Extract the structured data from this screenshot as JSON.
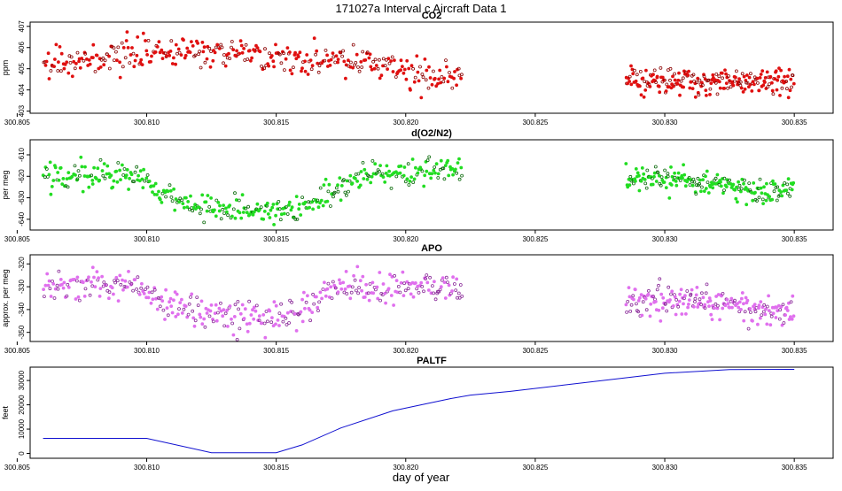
{
  "figure": {
    "title": "171027a   Interval c Aircraft Data 1",
    "xlabel": "day of year"
  },
  "chart_data": [
    {
      "type": "scatter",
      "id": "co2",
      "title": "CO2",
      "ylabel": "ppm",
      "color": "#e01010",
      "outline_color": "#8a0000",
      "xlim": [
        300.8055,
        300.8365
      ],
      "ylim": [
        402.9,
        407.2
      ],
      "xticks": [
        300.805,
        300.81,
        300.815,
        300.82,
        300.825,
        300.83,
        300.835
      ],
      "xtick_labels": [
        "300.805",
        "300.810",
        "300.815",
        "300.820",
        "300.825",
        "300.830",
        "300.835"
      ],
      "yticks": [
        403,
        404,
        405,
        406,
        407
      ],
      "ytick_labels": [
        "403",
        "404",
        "405",
        "406",
        "407"
      ],
      "segments": [
        {
          "x": [
            300.806,
            300.808,
            300.81,
            300.812,
            300.814,
            300.816,
            300.818,
            300.8195,
            300.8205,
            300.8222
          ],
          "y": [
            405.3,
            405.4,
            405.7,
            405.8,
            405.7,
            405.4,
            405.3,
            405.1,
            404.6,
            404.7
          ],
          "spread": 0.35,
          "n": 360
        },
        {
          "x": [
            300.8285,
            300.831,
            300.833,
            300.835
          ],
          "y": [
            404.4,
            404.4,
            404.4,
            404.4
          ],
          "spread": 0.3,
          "n": 220
        }
      ]
    },
    {
      "type": "scatter",
      "id": "o2n2",
      "title": "d(O2/N2)",
      "ylabel": "per meg",
      "color": "#22dd22",
      "outline_color": "#0a6a0a",
      "xlim": [
        300.8055,
        300.8365
      ],
      "ylim": [
        -645,
        -603
      ],
      "xticks": [
        300.805,
        300.81,
        300.815,
        300.82,
        300.825,
        300.83,
        300.835
      ],
      "xtick_labels": [
        "300.805",
        "300.810",
        "300.815",
        "300.820",
        "300.825",
        "300.830",
        "300.835"
      ],
      "yticks": [
        -640,
        -630,
        -620,
        -610
      ],
      "ytick_labels": [
        "-640",
        "-630",
        "-620",
        "-610"
      ],
      "segments": [
        {
          "x": [
            300.806,
            300.808,
            300.8095,
            300.8105,
            300.812,
            300.814,
            300.815,
            300.816,
            300.817,
            300.818,
            300.82,
            300.8222
          ],
          "y": [
            -619,
            -619,
            -619,
            -628,
            -634,
            -636,
            -637,
            -634,
            -628,
            -620,
            -617,
            -617
          ],
          "spread": 3.2,
          "n": 380
        },
        {
          "x": [
            300.8285,
            300.83,
            300.832,
            300.8335,
            300.835
          ],
          "y": [
            -622,
            -621,
            -623,
            -627,
            -625
          ],
          "spread": 2.8,
          "n": 200
        }
      ]
    },
    {
      "type": "scatter",
      "id": "apo",
      "title": "APO",
      "ylabel": "approx. per meg",
      "color": "#e070ee",
      "outline_color": "#8a2a99",
      "xlim": [
        300.8055,
        300.8365
      ],
      "ylim": [
        -354,
        -316
      ],
      "xticks": [
        300.805,
        300.81,
        300.815,
        300.82,
        300.825,
        300.83,
        300.835
      ],
      "xtick_labels": [
        "300.805",
        "300.810",
        "300.815",
        "300.820",
        "300.825",
        "300.830",
        "300.835"
      ],
      "yticks": [
        -350,
        -340,
        -330,
        -320
      ],
      "ytick_labels": [
        "-350",
        "-340",
        "-330",
        "-320"
      ],
      "segments": [
        {
          "x": [
            300.806,
            300.808,
            300.8095,
            300.8105,
            300.812,
            300.814,
            300.815,
            300.816,
            300.817,
            300.818,
            300.82,
            300.8222
          ],
          "y": [
            -329,
            -330,
            -329,
            -336,
            -341,
            -343,
            -344,
            -340,
            -333,
            -330,
            -330,
            -331
          ],
          "spread": 3.5,
          "n": 380
        },
        {
          "x": [
            300.8285,
            300.83,
            300.832,
            300.8335,
            300.835
          ],
          "y": [
            -337,
            -336,
            -337,
            -341,
            -340
          ],
          "spread": 3.2,
          "n": 200
        }
      ]
    },
    {
      "type": "line",
      "id": "paltf",
      "title": "PALTF",
      "ylabel": "feet",
      "color": "#1010d0",
      "xlim": [
        300.8055,
        300.8365
      ],
      "ylim": [
        -2000,
        35500
      ],
      "xticks": [
        300.805,
        300.81,
        300.815,
        300.82,
        300.825,
        300.83,
        300.835
      ],
      "xtick_labels": [
        "300.805",
        "300.810",
        "300.815",
        "300.820",
        "300.825",
        "300.830",
        "300.835"
      ],
      "yticks": [
        0,
        10000,
        20000,
        30000
      ],
      "ytick_labels": [
        "0",
        "10000",
        "20000",
        "30000"
      ],
      "x": [
        300.806,
        300.81,
        300.8125,
        300.815,
        300.816,
        300.8175,
        300.8195,
        300.8217,
        300.8225,
        300.824,
        300.826,
        300.828,
        300.83,
        300.8325,
        300.835
      ],
      "y": [
        6200,
        6200,
        300,
        300,
        3500,
        10500,
        17500,
        22500,
        24000,
        25500,
        28000,
        30500,
        33000,
        34500,
        34600
      ]
    }
  ]
}
